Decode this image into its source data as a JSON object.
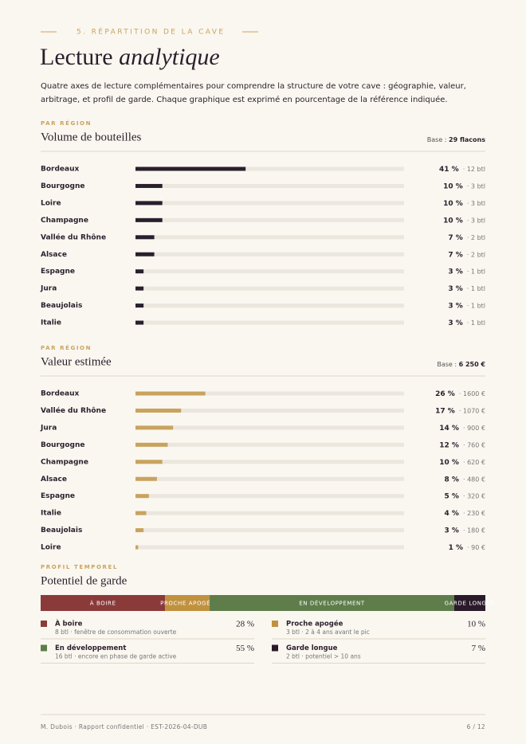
{
  "kicker": "5. RÉPARTITION DE LA CAVE",
  "title_main": "Lecture",
  "title_emphasis": "analytique",
  "intro": [
    "Quatre axes de lecture complémentaires pour comprendre la structure de votre cave : géographie, valeur,",
    "arbitrage, et profil de garde. Chaque graphique est exprimé en pourcentage de la référence indiquée."
  ],
  "footer_left": "M. Dubois · Rapport confidentiel · EST-2026-04-DUB",
  "footer_right": "6 / 12",
  "chart_data": [
    {
      "type": "bar",
      "eyebrow": "PAR RÉGION",
      "title": "Volume de bouteilles",
      "base_label": "Base :",
      "base_value": "29 flacons",
      "categories": [
        "Bordeaux",
        "Bourgogne",
        "Loire",
        "Champagne",
        "Vallée du Rhône",
        "Alsace",
        "Espagne",
        "Jura",
        "Beaujolais",
        "Italie"
      ],
      "values": [
        41,
        10,
        10,
        10,
        7,
        7,
        3,
        3,
        3,
        3
      ],
      "value_labels": [
        "41 %",
        "10 %",
        "10 %",
        "10 %",
        "7 %",
        "7 %",
        "3 %",
        "3 %",
        "3 %",
        "3 %"
      ],
      "details": [
        "· 12 btl",
        "· 3 btl",
        "· 3 btl",
        "· 3 btl",
        "· 2 btl",
        "· 2 btl",
        "· 1 btl",
        "· 1 btl",
        "· 1 btl",
        "· 1 btl"
      ],
      "color": "#2a1f2d",
      "xlim": [
        0,
        100
      ]
    },
    {
      "type": "bar",
      "eyebrow": "PAR RÉGION",
      "title": "Valeur estimée",
      "base_label": "Base :",
      "base_value": "6 250 €",
      "categories": [
        "Bordeaux",
        "Vallée du Rhône",
        "Jura",
        "Bourgogne",
        "Champagne",
        "Alsace",
        "Espagne",
        "Italie",
        "Beaujolais",
        "Loire"
      ],
      "values": [
        26,
        17,
        14,
        12,
        10,
        8,
        5,
        4,
        3,
        1
      ],
      "value_labels": [
        "26 %",
        "17 %",
        "14 %",
        "12 %",
        "10 %",
        "8 %",
        "5 %",
        "4 %",
        "3 %",
        "1 %"
      ],
      "details": [
        "· 1600 €",
        "· 1070 €",
        "· 900 €",
        "· 760 €",
        "· 620 €",
        "· 480 €",
        "· 320 €",
        "· 230 €",
        "· 180 €",
        "· 90 €"
      ],
      "color": "#c9a35e",
      "xlim": [
        0,
        100
      ]
    },
    {
      "type": "stacked_bar",
      "eyebrow": "PROFIL TEMPOREL",
      "title": "Potentiel de garde",
      "categories": [
        "À boire",
        "Proche apogée",
        "En développement",
        "Garde longue"
      ],
      "values": [
        28,
        10,
        55,
        7
      ],
      "value_labels": [
        "28 %",
        "10 %",
        "55 %",
        "7 %"
      ],
      "details": [
        "8 btl · fenêtre de consommation ouverte",
        "3 btl · 2 à 4 ans avant le pic",
        "16 btl · encore en phase de garde active",
        "2 btl · potentiel > 10 ans"
      ],
      "colors": [
        "#8b3a3a",
        "#c0913f",
        "#5e7d4a",
        "#2a1a2a"
      ],
      "xlim": [
        0,
        100
      ]
    }
  ]
}
